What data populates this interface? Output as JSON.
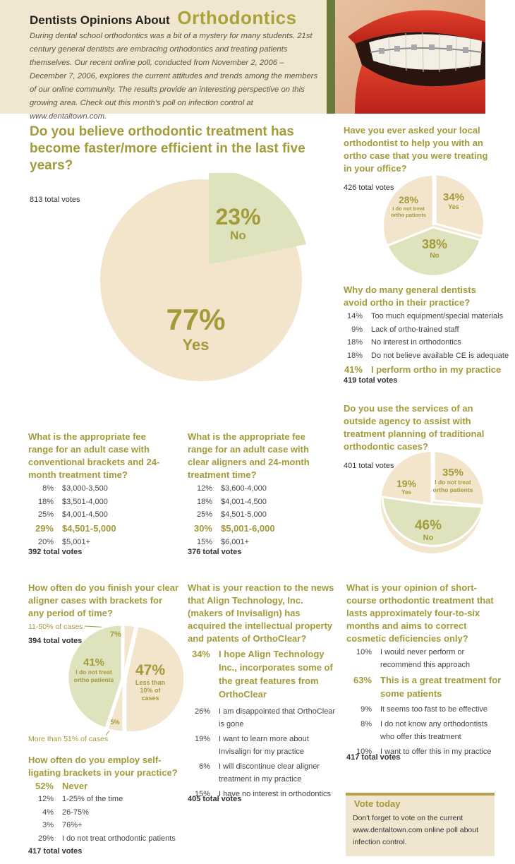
{
  "header": {
    "title_prefix": "Dentists Opinions About",
    "title_main": "Orthodontics",
    "intro": "During dental school orthodontics was a bit of a mystery for many students. 21st century general dentists are embracing orthodontics and treating patients themselves. Our recent online poll, conducted from November 2, 2006 – December 7, 2006, explores the current attitudes and trends among the members of our online community. The results provide an interesting perspective on this growing area. Check out this month's poll on infection control at www.dentaltown.com."
  },
  "colors": {
    "accent": "#a39a3a",
    "header_bg": "#f1e6cf",
    "pie_light": "#f2e5cc",
    "pie_green": "#dfe3bd"
  },
  "poll1": {
    "question": "Do you believe orthodontic treatment has become faster/more efficient in the last five years?",
    "total": "813 total votes",
    "slices": [
      {
        "pct": "23%",
        "label": "No"
      },
      {
        "pct": "77%",
        "label": "Yes"
      }
    ]
  },
  "poll2": {
    "question": "Have you ever asked your local orthodontist to help you with an ortho case that you were treating in your office?",
    "total": "426 total votes",
    "slices": [
      {
        "pct": "28%",
        "label": "I do not treat ortho patients"
      },
      {
        "pct": "34%",
        "label": "Yes"
      },
      {
        "pct": "38%",
        "label": "No"
      }
    ]
  },
  "poll3": {
    "question": "Why do many general dentists avoid ortho in their practice?",
    "rows": [
      {
        "pct": "14%",
        "text": "Too much equipment/special materials"
      },
      {
        "pct": "9%",
        "text": "Lack of ortho-trained staff"
      },
      {
        "pct": "18%",
        "text": "No interest in orthodontics"
      },
      {
        "pct": "18%",
        "text": "Do not believe available CE is adequate"
      },
      {
        "pct": "41%",
        "text": "I perform ortho in my practice"
      }
    ],
    "total": "419 total votes"
  },
  "poll4": {
    "question": "Do you use the services of an outside agency to assist with treatment planning of traditional orthodontic cases?",
    "total": "401 total votes",
    "slices": [
      {
        "pct": "19%",
        "label": "Yes"
      },
      {
        "pct": "35%",
        "label": "I do not treat ortho patients"
      },
      {
        "pct": "46%",
        "label": "No"
      }
    ]
  },
  "poll5": {
    "question": "What is the appropriate fee range for an adult case with conventional brackets and 24-month treatment time?",
    "rows": [
      {
        "pct": "8%",
        "text": "$3,000-3,500"
      },
      {
        "pct": "18%",
        "text": "$3,501-4,000"
      },
      {
        "pct": "25%",
        "text": "$4,001-4,500"
      },
      {
        "pct": "29%",
        "text": "$4,501-5,000"
      },
      {
        "pct": "20%",
        "text": "$5,001+"
      }
    ],
    "total": "392 total votes"
  },
  "poll6": {
    "question": "What is the appropriate fee range for an adult case with clear aligners and 24-month treatment time?",
    "rows": [
      {
        "pct": "12%",
        "text": "$3,600-4,000"
      },
      {
        "pct": "18%",
        "text": "$4,001-4,500"
      },
      {
        "pct": "25%",
        "text": "$4,501-5,000"
      },
      {
        "pct": "30%",
        "text": "$5,001-6,000"
      },
      {
        "pct": "15%",
        "text": "$6,001+"
      }
    ],
    "total": "376 total votes"
  },
  "poll7": {
    "question": "How often do you finish your clear aligner cases with brackets for any period of time?",
    "callout_top": "11-50% of cases",
    "callout_bottom": "More than 51% of cases",
    "total": "394 total votes",
    "slices": [
      {
        "pct": "7%",
        "label": ""
      },
      {
        "pct": "47%",
        "label": "Less than 10% of cases"
      },
      {
        "pct": "5%",
        "label": ""
      },
      {
        "pct": "41%",
        "label": "I do not treat ortho patients"
      }
    ]
  },
  "poll8": {
    "question": "How often do you employ self-ligating brackets in your practice?",
    "rows": [
      {
        "pct": "52%",
        "text": "Never"
      },
      {
        "pct": "12%",
        "text": "1-25% of the time"
      },
      {
        "pct": "4%",
        "text": "26-75%"
      },
      {
        "pct": "3%",
        "text": "76%+"
      },
      {
        "pct": "29%",
        "text": "I do not treat orthodontic patients"
      }
    ],
    "total": "417 total votes"
  },
  "poll9": {
    "question": "What is your reaction to the news that Align Technology, Inc. (makers of Invisalign) has acquired the intellectual property and patents of OrthoClear?",
    "rows": [
      {
        "pct": "34%",
        "text": "I hope Align Technology Inc., incorporates some of the great features from OrthoClear"
      },
      {
        "pct": "26%",
        "text": "I am disappointed that OrthoClear is gone"
      },
      {
        "pct": "19%",
        "text": "I want to learn more about Invisalign for my practice"
      },
      {
        "pct": "6%",
        "text": "I will discontinue clear aligner treatment in my practice"
      },
      {
        "pct": "15%",
        "text": "I have no interest in orthodontics"
      }
    ],
    "total": "405 total votes"
  },
  "poll10": {
    "question": "What is your opinion of short-course orthodontic treatment that lasts approximately four-to-six months and aims to correct cosmetic deficiencies only?",
    "rows": [
      {
        "pct": "10%",
        "text": "I would never perform or recommend this approach"
      },
      {
        "pct": "63%",
        "text": "This is a great treatment for some patients"
      },
      {
        "pct": "9%",
        "text": "It seems too fast to be effective"
      },
      {
        "pct": "8%",
        "text": "I do not know any orthodontists who offer this treatment"
      },
      {
        "pct": "10%",
        "text": "I want to offer this in my practice"
      }
    ],
    "total": "417 total votes"
  },
  "vote_box": {
    "title": "Vote today",
    "body": "Don't forget to vote on the current www.dentaltown.com online poll about infection control."
  }
}
